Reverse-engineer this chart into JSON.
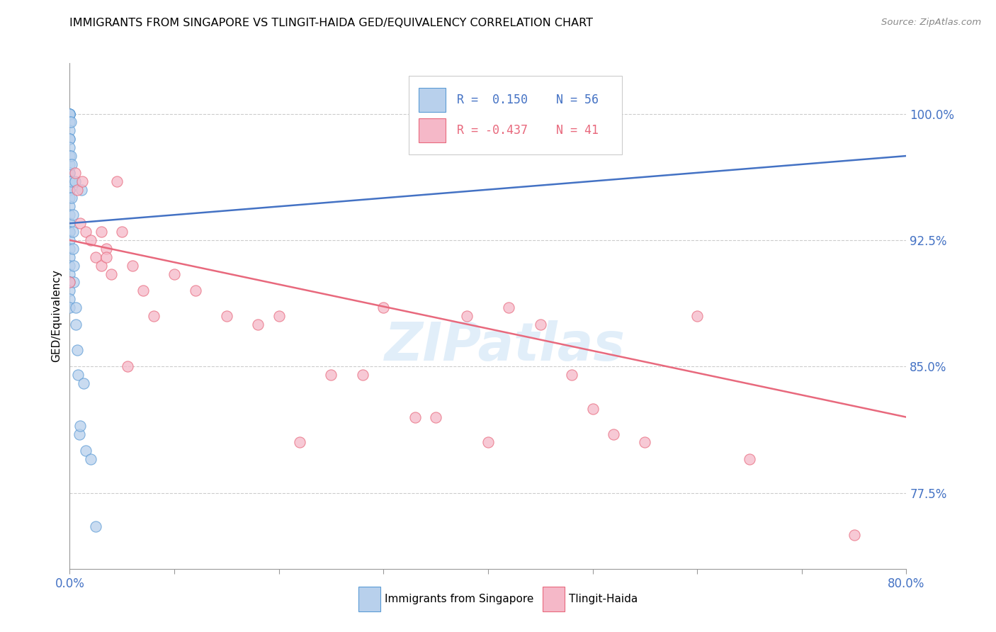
{
  "title": "IMMIGRANTS FROM SINGAPORE VS TLINGIT-HAIDA GED/EQUIVALENCY CORRELATION CHART",
  "source": "Source: ZipAtlas.com",
  "ylabel": "GED/Equivalency",
  "right_ytick_vals": [
    100.0,
    92.5,
    85.0,
    77.5
  ],
  "right_ytick_labels": [
    "100.0%",
    "92.5%",
    "85.0%",
    "77.5%"
  ],
  "xlim": [
    0.0,
    80.0
  ],
  "ylim": [
    73.0,
    103.0
  ],
  "label_blue": "Immigrants from Singapore",
  "label_pink": "Tlingit-Haida",
  "color_blue_fill": "#b8d0ec",
  "color_pink_fill": "#f5b8c8",
  "color_blue_edge": "#5b9bd5",
  "color_pink_edge": "#e8697d",
  "color_blue_line": "#4472c4",
  "color_pink_line": "#e8697d",
  "color_blue_text": "#4472c4",
  "color_pink_text": "#e8697d",
  "color_axis_labels": "#4472c4",
  "watermark": "ZIPatlas",
  "blue_x": [
    0.0,
    0.0,
    0.0,
    0.0,
    0.0,
    0.0,
    0.0,
    0.0,
    0.0,
    0.0,
    0.0,
    0.0,
    0.0,
    0.0,
    0.0,
    0.0,
    0.0,
    0.0,
    0.0,
    0.0,
    0.0,
    0.0,
    0.0,
    0.0,
    0.0,
    0.0,
    0.0,
    0.0,
    0.0,
    0.0,
    0.0,
    0.0,
    0.0,
    0.0,
    0.1,
    0.1,
    0.2,
    0.2,
    0.2,
    0.3,
    0.3,
    0.3,
    0.4,
    0.4,
    0.5,
    0.6,
    0.6,
    0.7,
    0.8,
    0.9,
    1.0,
    1.1,
    1.3,
    1.5,
    2.0,
    2.5
  ],
  "blue_y": [
    100.0,
    100.0,
    100.0,
    100.0,
    100.0,
    100.0,
    99.5,
    99.0,
    98.5,
    98.5,
    98.0,
    97.5,
    97.0,
    96.5,
    96.5,
    96.0,
    95.5,
    95.5,
    95.0,
    94.5,
    94.0,
    93.5,
    93.0,
    93.0,
    92.5,
    92.0,
    91.5,
    91.0,
    90.5,
    90.0,
    90.0,
    89.5,
    89.0,
    88.5,
    99.5,
    97.5,
    97.0,
    96.0,
    95.0,
    94.0,
    93.0,
    92.0,
    91.0,
    90.0,
    96.0,
    88.5,
    87.5,
    86.0,
    84.5,
    81.0,
    81.5,
    95.5,
    84.0,
    80.0,
    79.5,
    75.5
  ],
  "pink_x": [
    0.0,
    0.5,
    0.7,
    1.0,
    1.2,
    1.5,
    2.0,
    2.5,
    3.0,
    3.0,
    3.5,
    3.5,
    4.0,
    4.5,
    5.0,
    5.5,
    6.0,
    7.0,
    8.0,
    10.0,
    12.0,
    15.0,
    18.0,
    20.0,
    22.0,
    25.0,
    28.0,
    30.0,
    33.0,
    35.0,
    38.0,
    40.0,
    42.0,
    45.0,
    48.0,
    50.0,
    52.0,
    55.0,
    60.0,
    65.0,
    75.0
  ],
  "pink_y": [
    90.0,
    96.5,
    95.5,
    93.5,
    96.0,
    93.0,
    92.5,
    91.5,
    91.0,
    93.0,
    92.0,
    91.5,
    90.5,
    96.0,
    93.0,
    85.0,
    91.0,
    89.5,
    88.0,
    90.5,
    89.5,
    88.0,
    87.5,
    88.0,
    80.5,
    84.5,
    84.5,
    88.5,
    82.0,
    82.0,
    88.0,
    80.5,
    88.5,
    87.5,
    84.5,
    82.5,
    81.0,
    80.5,
    88.0,
    79.5,
    75.0
  ],
  "blue_trendline_x": [
    0.0,
    80.0
  ],
  "blue_trendline_y": [
    93.5,
    97.5
  ],
  "pink_trendline_x": [
    0.0,
    80.0
  ],
  "pink_trendline_y": [
    92.5,
    82.0
  ]
}
